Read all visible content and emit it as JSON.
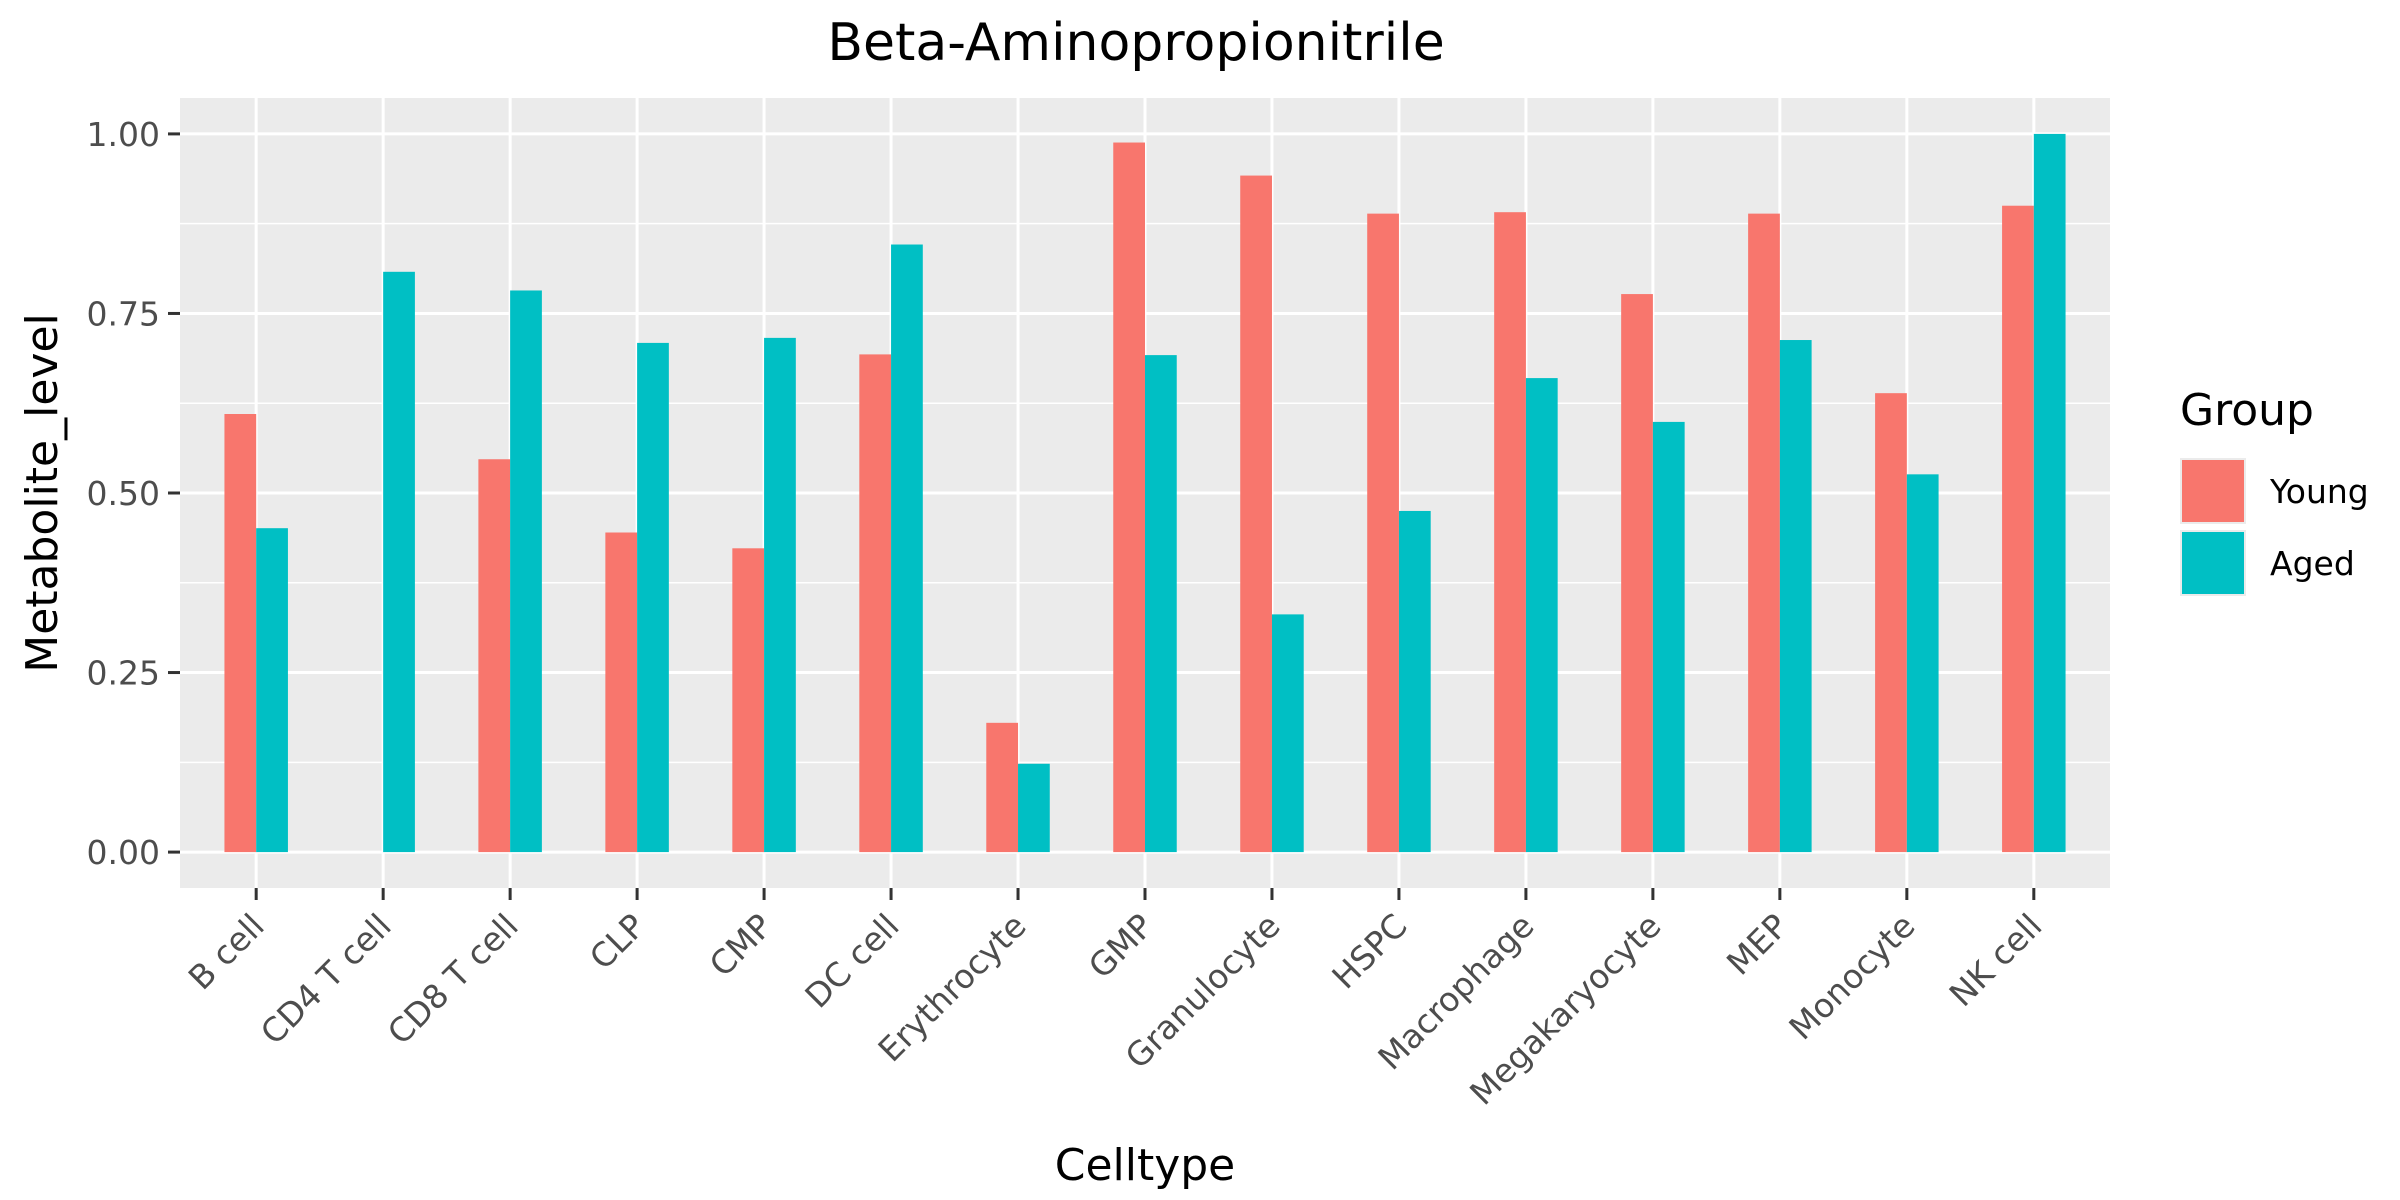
{
  "chart_data": {
    "type": "bar",
    "title": "Beta-Aminopropionitrile",
    "xlabel": "Celltype",
    "ylabel": "Metabolite_level",
    "categories": [
      "B cell",
      "CD4 T cell",
      "CD8 T cell",
      "CLP",
      "CMP",
      "DC cell",
      "Erythrocyte",
      "GMP",
      "Granulocyte",
      "HSPC",
      "Macrophage",
      "Megakaryocyte",
      "MEP",
      "Monocyte",
      "NK cell"
    ],
    "series": [
      {
        "name": "Young",
        "color": "#F8766D",
        "values": [
          0.61,
          null,
          0.547,
          0.445,
          0.423,
          0.693,
          0.18,
          0.988,
          0.942,
          0.889,
          0.891,
          0.777,
          0.889,
          0.639,
          0.9
        ]
      },
      {
        "name": "Aged",
        "color": "#00BFC4",
        "values": [
          0.451,
          0.808,
          0.782,
          0.709,
          0.716,
          0.846,
          0.123,
          0.692,
          0.331,
          0.475,
          0.66,
          0.599,
          0.713,
          0.526,
          1.0
        ]
      }
    ],
    "ylim": [
      -0.05,
      1.05
    ],
    "yticks": [
      0,
      0.25,
      0.5,
      0.75,
      1.0
    ],
    "ytick_labels": [
      "0.00",
      "0.25",
      "0.50",
      "0.75",
      "1.00"
    ],
    "grid": true,
    "legend": {
      "title": "Group",
      "position": "right"
    }
  }
}
